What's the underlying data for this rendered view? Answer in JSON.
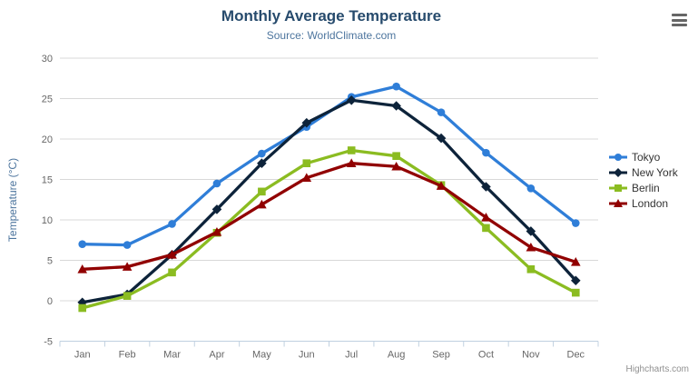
{
  "header": {
    "title": "Monthly Average Temperature",
    "subtitle": "Source: WorldClimate.com"
  },
  "menu": {
    "tooltip": "Chart context menu",
    "icon": "hamburger-icon"
  },
  "credits": {
    "label": "Highcharts.com"
  },
  "colors": {
    "title": "#274b6d",
    "subtitle": "#4d759e",
    "axis_title": "#4d759e",
    "tick_label": "#666666",
    "grid_line": "#d8d8d8",
    "axis_line": "#c0d0e0",
    "legend_text": "#333333",
    "tokyo": "#2f7ed8",
    "new_york": "#0d233a",
    "berlin": "#8bbc21",
    "london": "#910000"
  },
  "chart_data": {
    "type": "line",
    "title": "Monthly Average Temperature",
    "subtitle": "Source: WorldClimate.com",
    "xlabel": "",
    "ylabel": "Temperature (°C)",
    "ylim": [
      -5,
      30
    ],
    "ytick_interval": 5,
    "ytick_labels": [
      "-5",
      "0",
      "5",
      "10",
      "15",
      "20",
      "25",
      "30"
    ],
    "grid": true,
    "legend_position": "right-middle",
    "categories": [
      "Jan",
      "Feb",
      "Mar",
      "Apr",
      "May",
      "Jun",
      "Jul",
      "Aug",
      "Sep",
      "Oct",
      "Nov",
      "Dec"
    ],
    "series": [
      {
        "name": "Tokyo",
        "color": "#2f7ed8",
        "marker": "circle",
        "values": [
          7.0,
          6.9,
          9.5,
          14.5,
          18.2,
          21.5,
          25.2,
          26.5,
          23.3,
          18.3,
          13.9,
          9.6
        ]
      },
      {
        "name": "New York",
        "color": "#0d233a",
        "marker": "diamond",
        "values": [
          -0.2,
          0.8,
          5.7,
          11.3,
          17.0,
          22.0,
          24.8,
          24.1,
          20.1,
          14.1,
          8.6,
          2.5
        ]
      },
      {
        "name": "Berlin",
        "color": "#8bbc21",
        "marker": "square",
        "values": [
          -0.9,
          0.6,
          3.5,
          8.4,
          13.5,
          17.0,
          18.6,
          17.9,
          14.3,
          9.0,
          3.9,
          1.0
        ]
      },
      {
        "name": "London",
        "color": "#910000",
        "marker": "triangle",
        "values": [
          3.9,
          4.2,
          5.7,
          8.5,
          11.9,
          15.2,
          17.0,
          16.6,
          14.2,
          10.3,
          6.6,
          4.8
        ]
      }
    ]
  }
}
